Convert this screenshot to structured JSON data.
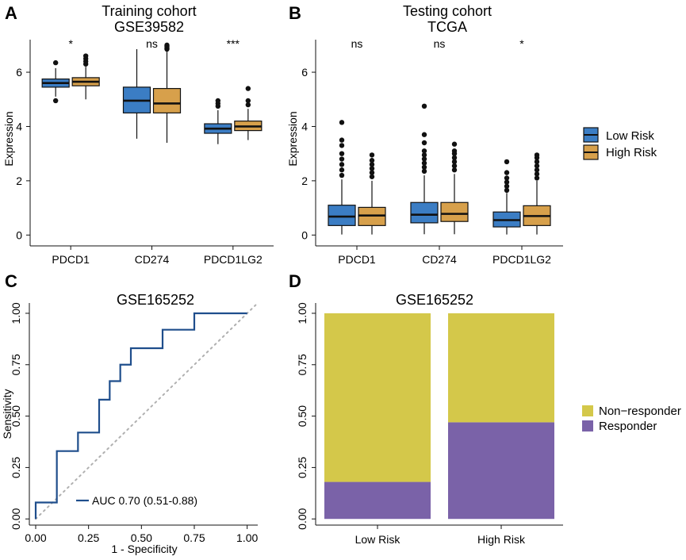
{
  "colors": {
    "low_risk": "#3b7dc4",
    "high_risk": "#d7a04b",
    "non_responder": "#d4c84a",
    "responder": "#7a62a8",
    "roc_line": "#1f4e8c",
    "diagonal": "#b0b0b0"
  },
  "legend_risk": [
    "Low Risk",
    "High Risk"
  ],
  "legend_response": [
    "Non−responder",
    "Responder"
  ],
  "chart_data": [
    {
      "panel": "A",
      "type": "boxplot",
      "title": "Training cohort",
      "subtitle": "GSE39582",
      "ylabel": "Expression",
      "xlabel": "",
      "ylim": [
        -0.4,
        7.2
      ],
      "yticks": [
        0,
        2,
        4,
        6
      ],
      "categories": [
        "PDCD1",
        "CD274",
        "PDCD1LG2"
      ],
      "significance": [
        "*",
        "ns",
        "***"
      ],
      "series": [
        {
          "name": "Low Risk",
          "boxes": [
            {
              "min": 5.1,
              "q1": 5.45,
              "median": 5.6,
              "q3": 5.75,
              "max": 6.15,
              "outliers": [
                4.95,
                6.35
              ]
            },
            {
              "min": 3.55,
              "q1": 4.5,
              "median": 4.95,
              "q3": 5.45,
              "max": 6.85,
              "outliers": []
            },
            {
              "min": 3.35,
              "q1": 3.75,
              "median": 3.92,
              "q3": 4.1,
              "max": 4.6,
              "outliers": [
                4.75,
                4.85,
                4.95
              ]
            }
          ]
        },
        {
          "name": "High Risk",
          "boxes": [
            {
              "min": 5.0,
              "q1": 5.5,
              "median": 5.65,
              "q3": 5.8,
              "max": 6.2,
              "outliers": [
                6.3,
                6.4,
                6.5,
                6.6
              ]
            },
            {
              "min": 3.4,
              "q1": 4.5,
              "median": 4.85,
              "q3": 5.4,
              "max": 6.8,
              "outliers": [
                6.85,
                6.9,
                6.95,
                7.0
              ]
            },
            {
              "min": 3.5,
              "q1": 3.85,
              "median": 4.0,
              "q3": 4.2,
              "max": 4.65,
              "outliers": [
                4.8,
                4.95,
                5.4
              ]
            }
          ]
        }
      ]
    },
    {
      "panel": "B",
      "type": "boxplot",
      "title": "Testing cohort",
      "subtitle": "TCGA",
      "ylabel": "Expression",
      "xlabel": "",
      "ylim": [
        -0.4,
        7.2
      ],
      "yticks": [
        0,
        2,
        4,
        6
      ],
      "categories": [
        "PDCD1",
        "CD274",
        "PDCD1LG2"
      ],
      "significance": [
        "ns",
        "ns",
        "*"
      ],
      "series": [
        {
          "name": "Low Risk",
          "boxes": [
            {
              "min": 0.02,
              "q1": 0.35,
              "median": 0.68,
              "q3": 1.1,
              "max": 2.05,
              "outliers": [
                2.2,
                2.4,
                2.6,
                2.8,
                3.0,
                3.3,
                3.5,
                4.15
              ]
            },
            {
              "min": 0.03,
              "q1": 0.45,
              "median": 0.75,
              "q3": 1.2,
              "max": 2.2,
              "outliers": [
                2.35,
                2.5,
                2.65,
                2.8,
                2.95,
                3.1,
                3.4,
                3.7,
                4.75
              ]
            },
            {
              "min": 0.02,
              "q1": 0.3,
              "median": 0.55,
              "q3": 0.85,
              "max": 1.55,
              "outliers": [
                1.65,
                1.8,
                1.95,
                2.1,
                2.3,
                2.7
              ]
            }
          ]
        },
        {
          "name": "High Risk",
          "boxes": [
            {
              "min": 0.02,
              "q1": 0.35,
              "median": 0.72,
              "q3": 1.02,
              "max": 2.0,
              "outliers": [
                2.15,
                2.3,
                2.45,
                2.6,
                2.75,
                2.95
              ]
            },
            {
              "min": 0.03,
              "q1": 0.5,
              "median": 0.78,
              "q3": 1.2,
              "max": 2.25,
              "outliers": [
                2.4,
                2.55,
                2.7,
                2.85,
                3.0,
                3.1,
                3.35
              ]
            },
            {
              "min": 0.02,
              "q1": 0.35,
              "median": 0.7,
              "q3": 1.08,
              "max": 2.0,
              "outliers": [
                2.1,
                2.25,
                2.4,
                2.55,
                2.7,
                2.85,
                2.95
              ]
            }
          ]
        }
      ]
    },
    {
      "panel": "C",
      "type": "line",
      "title": "GSE165252",
      "xlabel": "1 - Specificity",
      "ylabel": "Sensitivity",
      "xlim": [
        -0.03,
        1.05
      ],
      "ylim": [
        -0.03,
        1.05
      ],
      "xticks": [
        "0.00",
        "0.25",
        "0.50",
        "0.75",
        "1.00"
      ],
      "yticks": [
        "0.00",
        "0.25",
        "0.50",
        "0.75",
        "1.00"
      ],
      "series": [
        {
          "name": "ROC",
          "x": [
            0,
            0,
            0.1,
            0.1,
            0.2,
            0.2,
            0.3,
            0.3,
            0.35,
            0.35,
            0.4,
            0.4,
            0.45,
            0.45,
            0.6,
            0.6,
            0.75,
            0.75,
            1.0
          ],
          "y": [
            0,
            0.08,
            0.08,
            0.33,
            0.33,
            0.42,
            0.42,
            0.58,
            0.58,
            0.67,
            0.67,
            0.75,
            0.75,
            0.83,
            0.83,
            0.92,
            0.92,
            1.0,
            1.0
          ]
        }
      ],
      "legend": "AUC 0.70 (0.51-0.88)"
    },
    {
      "panel": "D",
      "type": "bar",
      "stacked": true,
      "title": "GSE165252",
      "xlabel": "",
      "ylabel": "",
      "ylim": [
        -0.03,
        1.05
      ],
      "yticks": [
        "0.00",
        "0.25",
        "0.50",
        "0.75",
        "1.00"
      ],
      "categories": [
        "Low Risk",
        "High Risk"
      ],
      "series": [
        {
          "name": "Responder",
          "values": [
            0.18,
            0.47
          ]
        },
        {
          "name": "Non−responder",
          "values": [
            0.82,
            0.53
          ]
        }
      ]
    }
  ]
}
